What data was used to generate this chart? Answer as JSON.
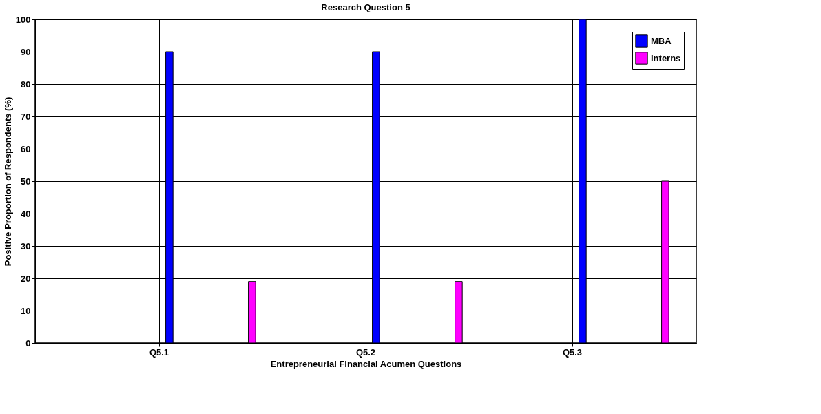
{
  "chart_data": {
    "type": "bar",
    "title": "Research Question 5",
    "xlabel": "Entrepreneurial Financial Acumen Questions",
    "ylabel": "Positive Proportion of Respondents (%)",
    "categories": [
      "Q5.1",
      "Q5.2",
      "Q5.3"
    ],
    "series": [
      {
        "name": "MBA",
        "color": "#0000ff",
        "values": [
          90,
          90,
          100
        ]
      },
      {
        "name": "Interns",
        "color": "#ff00ff",
        "values": [
          19,
          19,
          50
        ]
      }
    ],
    "ylim": [
      0,
      100
    ],
    "yticks": [
      0,
      10,
      20,
      30,
      40,
      50,
      60,
      70,
      80,
      90,
      100
    ],
    "grid": true,
    "legend": "top right"
  }
}
